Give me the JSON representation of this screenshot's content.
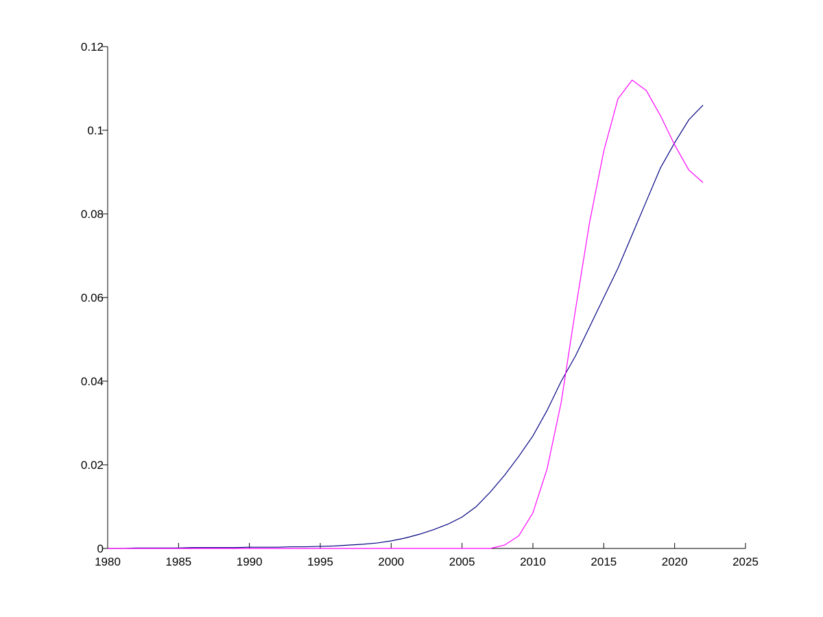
{
  "chart_data": {
    "type": "line",
    "x": [
      1980,
      1981,
      1982,
      1983,
      1984,
      1985,
      1986,
      1987,
      1988,
      1989,
      1990,
      1991,
      1992,
      1993,
      1994,
      1995,
      1996,
      1997,
      1998,
      1999,
      2000,
      2001,
      2002,
      2003,
      2004,
      2005,
      2006,
      2007,
      2008,
      2009,
      2010,
      2011,
      2012,
      2013,
      2014,
      2015,
      2016,
      2017,
      2018,
      2019,
      2020,
      2021,
      2022
    ],
    "series": [
      {
        "color": "#000080",
        "values": [
          0,
          0,
          0.0001,
          0.0001,
          0.0001,
          0.0001,
          0.0002,
          0.0002,
          0.0002,
          0.0002,
          0.0003,
          0.0003,
          0.0003,
          0.0004,
          0.0004,
          0.0005,
          0.0006,
          0.0008,
          0.001,
          0.0013,
          0.0018,
          0.0025,
          0.0034,
          0.0045,
          0.0058,
          0.0075,
          0.01,
          0.0135,
          0.0175,
          0.022,
          0.0269,
          0.033,
          0.04,
          0.046,
          0.053,
          0.06,
          0.067,
          0.075,
          0.083,
          0.091,
          0.097,
          0.1025,
          0.106
        ]
      },
      {
        "color": "#ff00ff",
        "values": [
          0,
          0,
          0,
          0,
          0,
          0,
          0,
          0,
          0,
          0,
          0,
          0,
          0,
          0,
          0,
          0,
          0,
          0,
          0,
          0,
          0,
          0,
          0,
          0,
          0,
          0,
          0,
          0,
          0.0008,
          0.003,
          0.0085,
          0.019,
          0.035,
          0.057,
          0.078,
          0.095,
          0.1075,
          0.112,
          0.1095,
          0.1035,
          0.0965,
          0.0905,
          0.0875
        ]
      }
    ],
    "xlim": [
      1980,
      2025
    ],
    "xticks": [
      1980,
      1985,
      1990,
      1995,
      2000,
      2005,
      2010,
      2015,
      2020,
      2025
    ],
    "ylim": [
      0,
      0.12
    ],
    "yticks": [
      0,
      0.02,
      0.04,
      0.06,
      0.08,
      0.1,
      0.12
    ]
  }
}
